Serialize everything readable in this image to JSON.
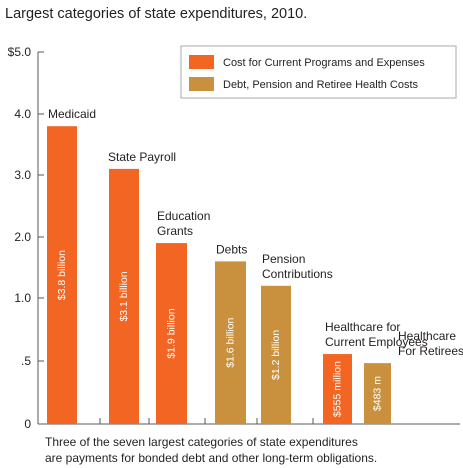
{
  "colors": {
    "current": "#f26522",
    "debt": "#c9913d",
    "axis": "#58595b",
    "text": "#231f20",
    "legend_box": "#a7a9ac"
  },
  "chart_data": {
    "type": "bar",
    "title": "Largest categories of state expenditures, 2010.",
    "xlabel": "",
    "ylabel": "",
    "ylim": [
      0,
      5
    ],
    "y_ticks": [
      {
        "value": 0,
        "label": "0"
      },
      {
        "value": 0.5,
        "label": ".5"
      },
      {
        "value": 1,
        "label": "1.0"
      },
      {
        "value": 2,
        "label": "2.0"
      },
      {
        "value": 3,
        "label": "3.0"
      },
      {
        "value": 4,
        "label": "4.0"
      },
      {
        "value": 5,
        "label": "$5.0"
      }
    ],
    "categories": [
      [
        "Medicaid"
      ],
      [
        "State Payroll"
      ],
      [
        "Education",
        "Grants"
      ],
      [
        "Debts"
      ],
      [
        "Pension",
        "Contributions"
      ],
      [
        "Healthcare for",
        "Current Employees"
      ],
      [
        "Healthcare",
        "For Retirees"
      ]
    ],
    "values": [
      3.8,
      3.1,
      1.9,
      1.6,
      1.2,
      0.555,
      0.483
    ],
    "value_labels": [
      "$3.8 billion",
      "$3.1 billion",
      "$1.9 billion",
      "$1.6 billion",
      "$1.2 billion",
      "$555 million",
      "$483 m"
    ],
    "series_of_bar": [
      "current",
      "current",
      "current",
      "debt",
      "debt",
      "current",
      "debt"
    ],
    "legend": {
      "position": "top-right",
      "items": [
        {
          "key": "current",
          "label": "Cost for Current Programs and Expenses"
        },
        {
          "key": "debt",
          "label": "Debt, Pension and Retiree Health Costs"
        }
      ]
    },
    "grid": false
  },
  "caption": {
    "line1": "Three of the seven largest categories of state expenditures",
    "line2": "are payments for bonded debt and other long-term obligations."
  }
}
